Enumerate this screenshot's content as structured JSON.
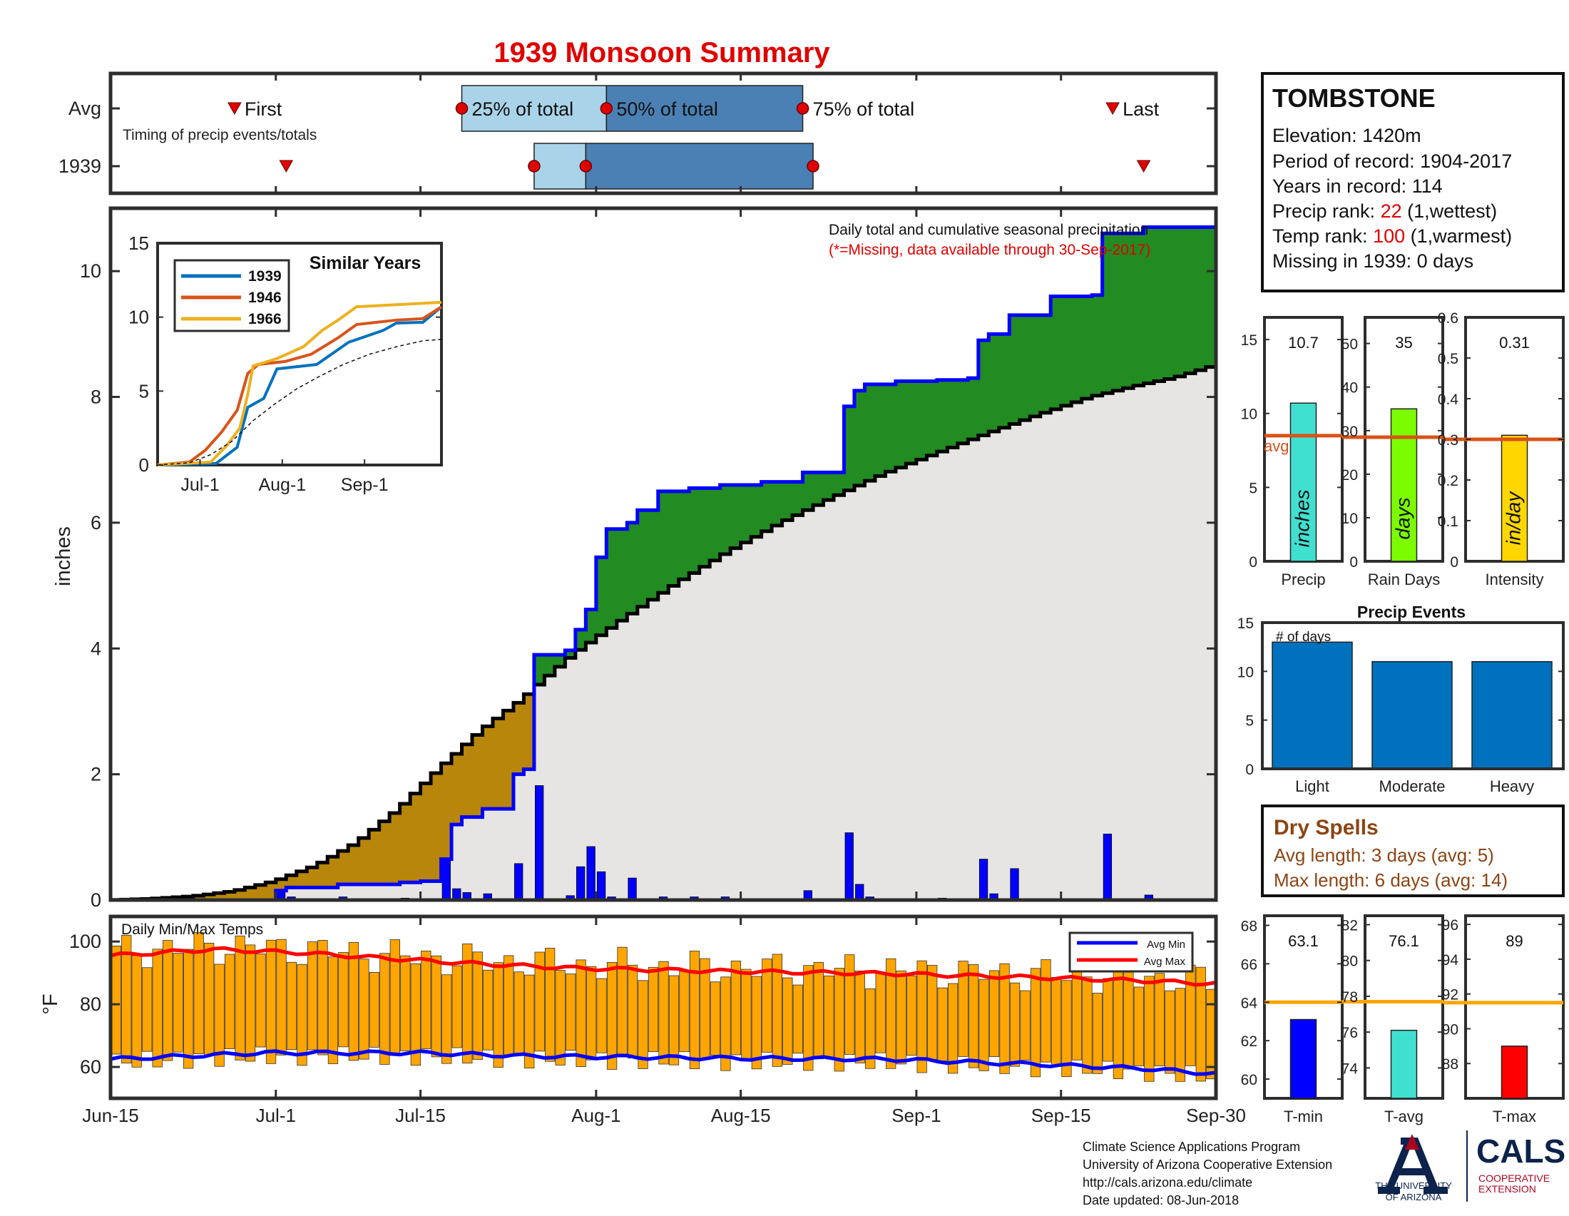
{
  "title": "1939 Monsoon Summary",
  "timing": {
    "row_labels": [
      "Avg",
      "1939"
    ],
    "subtitle": "Timing of precip events/totals",
    "first_label": "First",
    "last_label": "Last",
    "pct25_label": "25% of total",
    "pct50_label": "50% of total",
    "pct75_label": "75% of total",
    "colors": {
      "light": "#a9d3e8",
      "dark": "#4a80b4",
      "marker": "#e00000"
    }
  },
  "main_chart": {
    "ylabel": "inches",
    "annotation": "Daily total and cumulative seasonal precipitation",
    "missing_note": "(*=Missing, data available through 30-Sep-2017)",
    "y_ticks": [
      "0",
      "2",
      "4",
      "6",
      "8",
      "10"
    ],
    "x_ticks": [
      "Jun-15",
      "Jul-1",
      "Jul-15",
      "Aug-1",
      "Aug-15",
      "Sep-1",
      "Sep-15",
      "Sep-30"
    ],
    "colors": {
      "above": "#228b22",
      "below": "#b8860b",
      "fill": "#e6e5e4",
      "cum": "#0000ff",
      "avg": "#000000",
      "bars": "#0000ff"
    }
  },
  "similar_years": {
    "title": "Similar Years",
    "y_ticks": [
      "0",
      "5",
      "10",
      "15"
    ],
    "x_ticks": [
      "Jul-1",
      "Aug-1",
      "Sep-1"
    ],
    "legend": [
      {
        "name": "1939",
        "color": "#0072bd"
      },
      {
        "name": "1946",
        "color": "#d95319"
      },
      {
        "name": "1966",
        "color": "#edb120"
      }
    ]
  },
  "info_box": {
    "station": "TOMBSTONE",
    "elevation": "Elevation: 1420m",
    "period": "Period of record: 1904-2017",
    "years": "Years in record: 114",
    "precip_rank_prefix": "Precip rank: ",
    "precip_rank_value": "22",
    "precip_rank_suffix": " (1,wettest)",
    "temp_rank_prefix": "Temp rank: ",
    "temp_rank_value": "100",
    "temp_rank_suffix": " (1,warmest)",
    "missing": "Missing in 1939: 0 days"
  },
  "stats": {
    "avg_label": "avg",
    "precip": {
      "label": "Precip",
      "unit": "inches",
      "value_text": "10.7",
      "value": 10.7,
      "avg": 8.5,
      "ymax": 16.5,
      "ticks": [
        "0",
        "5",
        "10",
        "15"
      ],
      "color": "#40e0d0"
    },
    "rain_days": {
      "label": "Rain Days",
      "unit": "days",
      "value_text": "35",
      "value": 35,
      "avg": 28.5,
      "ymax": 56,
      "ticks": [
        "0",
        "10",
        "20",
        "30",
        "40",
        "50"
      ],
      "color": "#7cfc00"
    },
    "intensity": {
      "label": "Intensity",
      "unit": "in/day",
      "value_text": "0.31",
      "value": 0.31,
      "avg": 0.3,
      "ymax": 0.6,
      "ticks": [
        "0",
        "0.1",
        "0.2",
        "0.3",
        "0.4",
        "0.5",
        "0.6"
      ],
      "color": "#ffd700"
    }
  },
  "precip_events": {
    "title": "Precip Events",
    "annotation": "# of days",
    "y_ticks": [
      "0",
      "5",
      "10",
      "15"
    ],
    "categories": [
      "Light",
      "Moderate",
      "Heavy"
    ],
    "values": [
      13,
      11,
      11
    ],
    "color": "#0072bd"
  },
  "dry_spells": {
    "title": "Dry Spells",
    "avg_length": "Avg length: 3 days (avg: 5)",
    "max_length": "Max length: 6 days (avg: 14)",
    "color": "#8b4513"
  },
  "temps": {
    "title": "Daily Min/Max Temps",
    "ylabel": "°F",
    "y_ticks": [
      "60",
      "80",
      "100"
    ],
    "legend_min": "Avg Min",
    "legend_max": "Avg Max",
    "colors": {
      "bars": "#ffa500",
      "min": "#0000ff",
      "max": "#ff0000"
    }
  },
  "temp_stats": {
    "tmin": {
      "label": "T-min",
      "value_text": "63.1",
      "value": 63.1,
      "avg": 64,
      "ymin": 59,
      "ymax": 68.5,
      "ticks": [
        "60",
        "62",
        "64",
        "66",
        "68"
      ],
      "color": "#0000ff"
    },
    "tavg": {
      "label": "T-avg",
      "value_text": "76.1",
      "value": 76.1,
      "avg": 77.7,
      "ymin": 72.3,
      "ymax": 82.5,
      "ticks": [
        "74",
        "76",
        "78",
        "80",
        "82"
      ],
      "color": "#40e0d0"
    },
    "tmax": {
      "label": "T-max",
      "value_text": "89",
      "value": 89,
      "avg": 91.5,
      "ymin": 86,
      "ymax": 96.5,
      "ticks": [
        "88",
        "90",
        "92",
        "94",
        "96"
      ],
      "color": "#ff0000"
    },
    "avg_color": "#ffa500"
  },
  "footer": {
    "line1": "Climate Science Applications Program",
    "line2": "University of Arizona Cooperative Extension",
    "line3": "http://cals.arizona.edu/climate",
    "line4": " Date updated: 08-Jun-2018",
    "ua_line1": "THE UNIVERSITY",
    "ua_line2": "OF ARIZONA",
    "cals": "CALS",
    "coop1": "COOPERATIVE",
    "coop2": "EXTENSION"
  },
  "chart_data": [
    {
      "type": "bar",
      "title": "Timing of precip events/totals",
      "x": [
        "Jun-15",
        "Jul-1",
        "Jul-15",
        "Aug-1",
        "Aug-15",
        "Sep-1",
        "Sep-15",
        "Sep-30"
      ],
      "series": [
        {
          "name": "Avg",
          "first_day": 12,
          "pct25_day": 34,
          "pct50_day": 48,
          "pct75_day": 67,
          "last_day": 97
        },
        {
          "name": "1939",
          "first_day": 17,
          "pct25_day": 41,
          "pct50_day": 46,
          "pct75_day": 68,
          "last_day": 100
        }
      ]
    },
    {
      "type": "area",
      "title": "Daily total and cumulative seasonal precipitation",
      "xlabel": "",
      "ylabel": "inches",
      "x_range": [
        "Jun-15",
        "Sep-30"
      ],
      "ylim": [
        0,
        11
      ],
      "series": [
        {
          "name": "1939 cumulative",
          "points": [
            [
              0,
              0
            ],
            [
              16,
              0
            ],
            [
              16,
              0.15
            ],
            [
              17,
              0.15
            ],
            [
              17,
              0.2
            ],
            [
              22,
              0.2
            ],
            [
              22,
              0.25
            ],
            [
              28,
              0.25
            ],
            [
              28,
              0.28
            ],
            [
              30,
              0.28
            ],
            [
              30,
              0.3
            ],
            [
              32,
              0.3
            ],
            [
              32,
              0.65
            ],
            [
              33,
              0.65
            ],
            [
              33,
              1.2
            ],
            [
              34,
              1.2
            ],
            [
              34,
              1.32
            ],
            [
              36,
              1.32
            ],
            [
              36,
              1.45
            ],
            [
              39,
              1.45
            ],
            [
              39,
              2.0
            ],
            [
              40,
              2.0
            ],
            [
              40,
              2.08
            ],
            [
              41,
              2.08
            ],
            [
              41,
              3.9
            ],
            [
              44,
              3.9
            ],
            [
              44,
              3.97
            ],
            [
              45,
              3.97
            ],
            [
              45,
              4.3
            ],
            [
              46,
              4.3
            ],
            [
              46,
              4.62
            ],
            [
              47,
              4.62
            ],
            [
              47,
              5.45
            ],
            [
              48,
              5.45
            ],
            [
              48,
              5.9
            ],
            [
              50,
              5.9
            ],
            [
              50,
              6.0
            ],
            [
              51,
              6.0
            ],
            [
              51,
              6.2
            ],
            [
              53,
              6.2
            ],
            [
              53,
              6.5
            ],
            [
              56,
              6.5
            ],
            [
              56,
              6.55
            ],
            [
              59,
              6.55
            ],
            [
              59,
              6.6
            ],
            [
              63,
              6.6
            ],
            [
              63,
              6.65
            ],
            [
              67,
              6.65
            ],
            [
              67,
              6.8
            ],
            [
              71,
              6.8
            ],
            [
              71,
              7.85
            ],
            [
              72,
              7.85
            ],
            [
              72,
              8.1
            ],
            [
              73,
              8.1
            ],
            [
              73,
              8.2
            ],
            [
              76,
              8.2
            ],
            [
              76,
              8.25
            ],
            [
              80,
              8.25
            ],
            [
              80,
              8.27
            ],
            [
              83,
              8.27
            ],
            [
              83,
              8.3
            ],
            [
              84,
              8.3
            ],
            [
              84,
              8.9
            ],
            [
              85,
              8.9
            ],
            [
              85,
              9.0
            ],
            [
              87,
              9.0
            ],
            [
              87,
              9.3
            ],
            [
              91,
              9.3
            ],
            [
              91,
              9.6
            ],
            [
              95,
              9.6
            ],
            [
              95,
              9.62
            ],
            [
              96,
              9.62
            ],
            [
              96,
              10.6
            ],
            [
              100,
              10.6
            ],
            [
              100,
              10.7
            ],
            [
              107,
              10.7
            ]
          ]
        },
        {
          "name": "Average cumulative",
          "points": [
            [
              0,
              0
            ],
            [
              4,
              0.02
            ],
            [
              8,
              0.06
            ],
            [
              12,
              0.14
            ],
            [
              16,
              0.3
            ],
            [
              20,
              0.55
            ],
            [
              24,
              0.92
            ],
            [
              28,
              1.45
            ],
            [
              32,
              2.1
            ],
            [
              36,
              2.7
            ],
            [
              40,
              3.2
            ],
            [
              42,
              3.5
            ],
            [
              45,
              3.92
            ],
            [
              50,
              4.5
            ],
            [
              55,
              5.05
            ],
            [
              60,
              5.55
            ],
            [
              65,
              6.0
            ],
            [
              70,
              6.4
            ],
            [
              75,
              6.78
            ],
            [
              80,
              7.1
            ],
            [
              85,
              7.42
            ],
            [
              90,
              7.72
            ],
            [
              95,
              8.0
            ],
            [
              100,
              8.2
            ],
            [
              103,
              8.3
            ],
            [
              107,
              8.5
            ]
          ]
        }
      ],
      "daily_totals": [
        [
          16,
          0.15
        ],
        [
          17,
          0.05
        ],
        [
          22,
          0.05
        ],
        [
          28,
          0.03
        ],
        [
          30,
          0.02
        ],
        [
          32,
          0.65
        ],
        [
          33,
          0.18
        ],
        [
          34,
          0.12
        ],
        [
          36,
          0.1
        ],
        [
          39,
          0.58
        ],
        [
          41,
          1.82
        ],
        [
          44,
          0.07
        ],
        [
          45,
          0.53
        ],
        [
          46,
          0.85
        ],
        [
          47,
          0.45
        ],
        [
          48,
          0.05
        ],
        [
          50,
          0.35
        ],
        [
          53,
          0.05
        ],
        [
          56,
          0.05
        ],
        [
          59,
          0.05
        ],
        [
          67,
          0.15
        ],
        [
          71,
          1.07
        ],
        [
          72,
          0.25
        ],
        [
          73,
          0.05
        ],
        [
          80,
          0.03
        ],
        [
          84,
          0.65
        ],
        [
          85,
          0.1
        ],
        [
          87,
          0.5
        ],
        [
          96,
          1.05
        ],
        [
          100,
          0.08
        ]
      ]
    },
    {
      "type": "line",
      "title": "Similar Years",
      "x_ticks": [
        "Jul-1",
        "Aug-1",
        "Sep-1"
      ],
      "ylim": [
        0,
        15
      ],
      "series": [
        {
          "name": "1939",
          "points": [
            [
              0,
              0
            ],
            [
              22,
              0.1
            ],
            [
              30,
              1.2
            ],
            [
              34,
              3.9
            ],
            [
              40,
              4.5
            ],
            [
              45,
              6.5
            ],
            [
              60,
              6.8
            ],
            [
              72,
              8.3
            ],
            [
              85,
              9.1
            ],
            [
              90,
              9.6
            ],
            [
              100,
              9.65
            ],
            [
              107,
              10.7
            ]
          ]
        },
        {
          "name": "1946",
          "points": [
            [
              0,
              0
            ],
            [
              12,
              0.2
            ],
            [
              18,
              1.0
            ],
            [
              24,
              2.2
            ],
            [
              30,
              3.7
            ],
            [
              34,
              6.2
            ],
            [
              38,
              6.8
            ],
            [
              48,
              7.0
            ],
            [
              58,
              7.5
            ],
            [
              68,
              8.6
            ],
            [
              75,
              9.5
            ],
            [
              90,
              9.8
            ],
            [
              100,
              9.9
            ],
            [
              107,
              10.7
            ]
          ]
        },
        {
          "name": "1966",
          "points": [
            [
              0,
              0
            ],
            [
              20,
              0.2
            ],
            [
              26,
              1.3
            ],
            [
              31,
              2.5
            ],
            [
              34,
              4.8
            ],
            [
              36,
              6.7
            ],
            [
              45,
              7.2
            ],
            [
              55,
              8.0
            ],
            [
              62,
              9.1
            ],
            [
              68,
              9.8
            ],
            [
              75,
              10.7
            ],
            [
              107,
              11.0
            ]
          ]
        },
        {
          "name": "Average",
          "points": [
            [
              0,
              0
            ],
            [
              12,
              0.15
            ],
            [
              20,
              0.7
            ],
            [
              28,
              1.6
            ],
            [
              36,
              3.0
            ],
            [
              44,
              4.1
            ],
            [
              52,
              5.1
            ],
            [
              60,
              5.9
            ],
            [
              70,
              6.8
            ],
            [
              80,
              7.5
            ],
            [
              90,
              8.0
            ],
            [
              100,
              8.4
            ],
            [
              107,
              8.5
            ]
          ]
        }
      ]
    },
    {
      "type": "bar",
      "title": "Daily Min/Max Temps",
      "ylabel": "°F",
      "ylim": [
        50,
        108
      ],
      "x_range": [
        "Jun-15",
        "Sep-30"
      ],
      "series": [
        {
          "name": "Avg Min",
          "points": [
            [
              0,
              62.5
            ],
            [
              15,
              64.5
            ],
            [
              30,
              64.5
            ],
            [
              40,
              63.5
            ],
            [
              60,
              62.8
            ],
            [
              75,
              62.5
            ],
            [
              90,
              60.8
            ],
            [
              100,
              59.5
            ],
            [
              107,
              57.8
            ]
          ]
        },
        {
          "name": "Avg Max",
          "points": [
            [
              0,
              95.5
            ],
            [
              10,
              97.5
            ],
            [
              18,
              96.5
            ],
            [
              25,
              95
            ],
            [
              35,
              93
            ],
            [
              45,
              91.5
            ],
            [
              60,
              90.5
            ],
            [
              75,
              89.8
            ],
            [
              90,
              88.5
            ],
            [
              100,
              87.5
            ],
            [
              107,
              86.5
            ]
          ]
        }
      ]
    },
    {
      "type": "bar",
      "title": "Precip Events",
      "categories": [
        "Light",
        "Moderate",
        "Heavy"
      ],
      "values": [
        13,
        11,
        11
      ],
      "ylim": [
        0,
        15
      ]
    }
  ]
}
